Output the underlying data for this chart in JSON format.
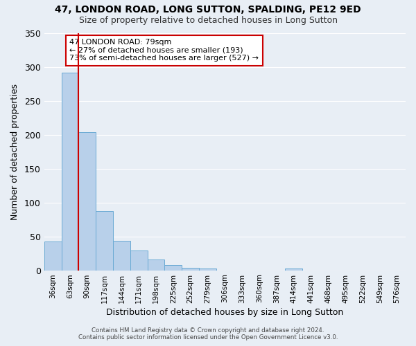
{
  "title_line1": "47, LONDON ROAD, LONG SUTTON, SPALDING, PE12 9ED",
  "title_line2": "Size of property relative to detached houses in Long Sutton",
  "xlabel": "Distribution of detached houses by size in Long Sutton",
  "ylabel": "Number of detached properties",
  "bar_labels": [
    "36sqm",
    "63sqm",
    "90sqm",
    "117sqm",
    "144sqm",
    "171sqm",
    "198sqm",
    "225sqm",
    "252sqm",
    "279sqm",
    "306sqm",
    "333sqm",
    "360sqm",
    "387sqm",
    "414sqm",
    "441sqm",
    "468sqm",
    "495sqm",
    "522sqm",
    "549sqm",
    "576sqm"
  ],
  "bar_values": [
    42,
    291,
    204,
    87,
    43,
    29,
    16,
    8,
    4,
    3,
    0,
    0,
    0,
    0,
    3,
    0,
    0,
    0,
    0,
    0,
    0
  ],
  "bar_color": "#b8d0ea",
  "bar_edge_color": "#6aaad4",
  "background_color": "#e8eef5",
  "grid_color": "#ffffff",
  "vline_x": 2,
  "vline_color": "#cc0000",
  "ylim": [
    0,
    350
  ],
  "yticks": [
    0,
    50,
    100,
    150,
    200,
    250,
    300,
    350
  ],
  "annotation_title": "47 LONDON ROAD: 79sqm",
  "annotation_line1": "← 27% of detached houses are smaller (193)",
  "annotation_line2": "73% of semi-detached houses are larger (527) →",
  "annotation_box_color": "#ffffff",
  "annotation_box_edge": "#cc0000",
  "footer_line1": "Contains HM Land Registry data © Crown copyright and database right 2024.",
  "footer_line2": "Contains public sector information licensed under the Open Government Licence v3.0."
}
